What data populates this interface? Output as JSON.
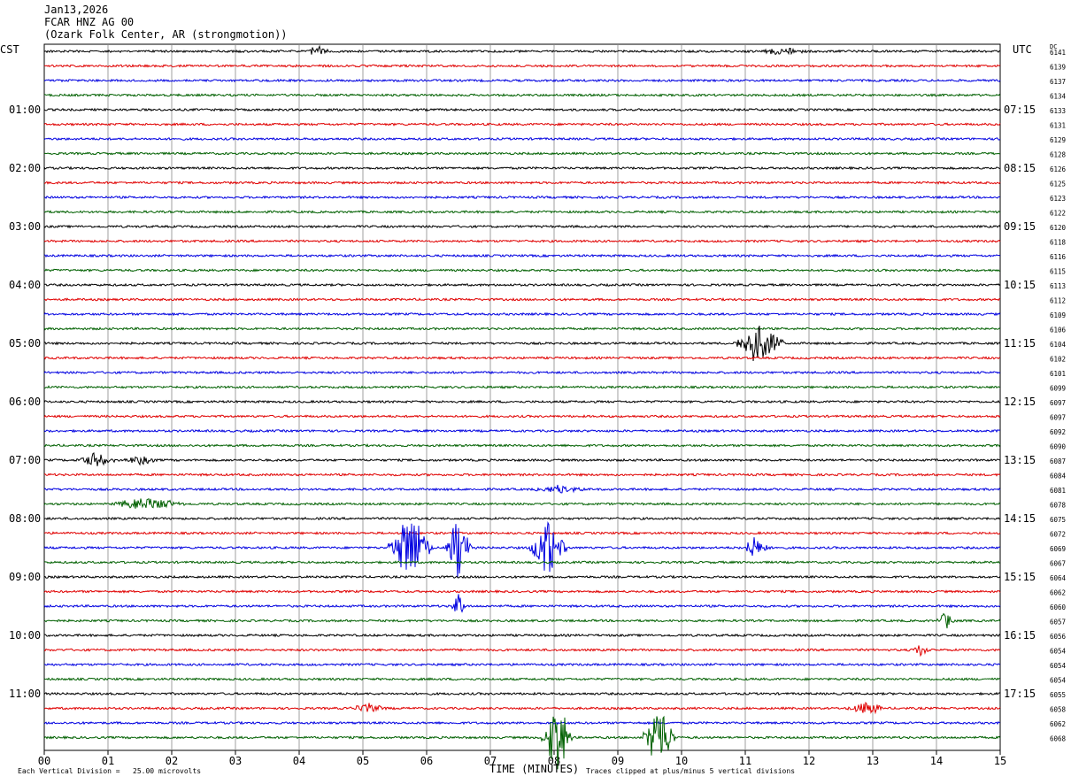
{
  "header": {
    "date": "Jan13,2026",
    "station": "FCAR HNZ AG 00",
    "location": "(Ozark Folk Center, AR (strongmotion))"
  },
  "labels": {
    "left_timezone": "CST",
    "right_timezone": "UTC",
    "dc_label": "DC",
    "xlabel": "TIME (MINUTES)",
    "footer_left": "Each Vertical Division =   25.00 microvolts",
    "footer_right": "Traces clipped at plus/minus 5 vertical divisions"
  },
  "chart_data": {
    "type": "line",
    "title": "FCAR HNZ AG 00",
    "xlabel": "TIME (MINUTES)",
    "xlim": [
      0,
      15
    ],
    "x_ticks": [
      "00",
      "01",
      "02",
      "03",
      "04",
      "05",
      "06",
      "07",
      "08",
      "09",
      "10",
      "11",
      "12",
      "13",
      "14",
      "15"
    ],
    "grid": true,
    "trace_colors": [
      "#000000",
      "#e00000",
      "#0000e0",
      "#006000"
    ],
    "left_hour_labels": [
      "01:00",
      "02:00",
      "03:00",
      "04:00",
      "05:00",
      "06:00",
      "07:00",
      "08:00",
      "09:00",
      "10:00",
      "11:00"
    ],
    "right_hour_labels": [
      "07:15",
      "08:15",
      "09:15",
      "10:15",
      "11:15",
      "12:15",
      "13:15",
      "14:15",
      "15:15",
      "16:15",
      "17:15"
    ],
    "hour_label_rows": [
      4,
      8,
      12,
      16,
      20,
      24,
      28,
      32,
      36,
      40,
      44
    ],
    "dc_values": [
      "6141",
      "6139",
      "6137",
      "6134",
      "6133",
      "6131",
      "6129",
      "6128",
      "6126",
      "6125",
      "6123",
      "6122",
      "6120",
      "6118",
      "6116",
      "6115",
      "6113",
      "6112",
      "6109",
      "6106",
      "6104",
      "6102",
      "6101",
      "6099",
      "6097",
      "6097",
      "6092",
      "6090",
      "6087",
      "6084",
      "6081",
      "6078",
      "6075",
      "6072",
      "6069",
      "6067",
      "6064",
      "6062",
      "6060",
      "6057",
      "6056",
      "6054",
      "6054",
      "6054",
      "6055",
      "6058",
      "6062",
      "6068"
    ],
    "events": [
      {
        "row": 0,
        "start_min": 4.1,
        "end_min": 4.5,
        "amp_div": 0.8
      },
      {
        "row": 0,
        "start_min": 11.2,
        "end_min": 12.0,
        "amp_div": 0.6
      },
      {
        "row": 20,
        "start_min": 10.8,
        "end_min": 11.6,
        "amp_div": 3.0
      },
      {
        "row": 28,
        "start_min": 0.5,
        "end_min": 1.1,
        "amp_div": 1.0
      },
      {
        "row": 28,
        "start_min": 1.2,
        "end_min": 1.8,
        "amp_div": 0.6
      },
      {
        "row": 30,
        "start_min": 7.7,
        "end_min": 8.5,
        "amp_div": 0.6
      },
      {
        "row": 31,
        "start_min": 1.0,
        "end_min": 2.2,
        "amp_div": 1.0
      },
      {
        "row": 34,
        "start_min": 5.4,
        "end_min": 6.1,
        "amp_div": 5.0
      },
      {
        "row": 34,
        "start_min": 6.3,
        "end_min": 6.7,
        "amp_div": 5.0
      },
      {
        "row": 34,
        "start_min": 7.6,
        "end_min": 8.2,
        "amp_div": 4.0
      },
      {
        "row": 34,
        "start_min": 10.9,
        "end_min": 11.4,
        "amp_div": 1.5
      },
      {
        "row": 38,
        "start_min": 6.4,
        "end_min": 6.6,
        "amp_div": 2.0
      },
      {
        "row": 39,
        "start_min": 14.0,
        "end_min": 14.3,
        "amp_div": 1.2
      },
      {
        "row": 41,
        "start_min": 13.6,
        "end_min": 13.9,
        "amp_div": 1.0
      },
      {
        "row": 45,
        "start_min": 4.8,
        "end_min": 5.4,
        "amp_div": 0.8
      },
      {
        "row": 45,
        "start_min": 12.6,
        "end_min": 13.2,
        "amp_div": 1.0
      },
      {
        "row": 47,
        "start_min": 7.8,
        "end_min": 8.3,
        "amp_div": 5.0
      },
      {
        "row": 47,
        "start_min": 9.4,
        "end_min": 9.9,
        "amp_div": 5.0
      }
    ]
  }
}
